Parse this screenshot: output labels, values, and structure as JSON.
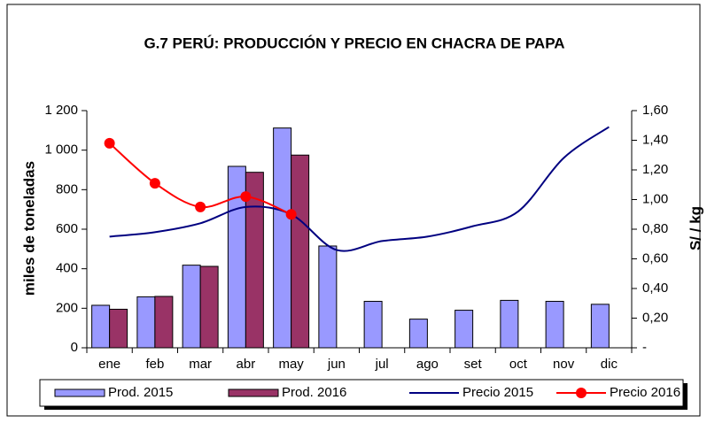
{
  "chart_data": {
    "type": "bar_line",
    "title": "G.7 PERÚ: PRODUCCIÓN Y PRECIO EN CHACRA DE PAPA",
    "ylabel": "miles de toneladas",
    "y2label": "S/ / kg",
    "categories": [
      "ene",
      "feb",
      "mar",
      "abr",
      "may",
      "jun",
      "jul",
      "ago",
      "set",
      "oct",
      "nov",
      "dic"
    ],
    "ylim": [
      0,
      1200
    ],
    "yticks": [
      0,
      200,
      400,
      600,
      800,
      {
        "value": 1000,
        "label": "1 000"
      },
      {
        "value": 1200,
        "label": "1 200"
      }
    ],
    "y2lim": [
      0,
      1.6
    ],
    "y2ticks": [
      {
        "value": 0,
        "label": "-"
      },
      {
        "value": 0.2,
        "label": "0,20"
      },
      {
        "value": 0.4,
        "label": "0,40"
      },
      {
        "value": 0.6,
        "label": "0,60"
      },
      {
        "value": 0.8,
        "label": "0,80"
      },
      {
        "value": 1.0,
        "label": "1,00"
      },
      {
        "value": 1.2,
        "label": "1,20"
      },
      {
        "value": 1.4,
        "label": "1,40"
      },
      {
        "value": 1.6,
        "label": "1,60"
      }
    ],
    "series": [
      {
        "name": "Prod. 2015",
        "kind": "bar",
        "color": "#9999ff",
        "values": [
          215,
          258,
          418,
          918,
          1112,
          515,
          235,
          145,
          190,
          240,
          235,
          220
        ]
      },
      {
        "name": "Prod. 2016",
        "kind": "bar",
        "color": "#993366",
        "values": [
          195,
          260,
          412,
          888,
          975,
          null,
          null,
          null,
          null,
          null,
          null,
          null
        ]
      },
      {
        "name": "Precio 2015",
        "kind": "line",
        "axis": "y2",
        "color": "#000080",
        "values": [
          0.75,
          0.78,
          0.84,
          0.95,
          0.9,
          0.66,
          0.72,
          0.75,
          0.82,
          0.92,
          1.28,
          1.49
        ]
      },
      {
        "name": "Precio 2016",
        "kind": "line",
        "axis": "y2",
        "markers": true,
        "color": "#ff0000",
        "values": [
          1.38,
          1.11,
          0.95,
          1.02,
          0.9,
          null,
          null,
          null,
          null,
          null,
          null,
          null
        ]
      }
    ]
  }
}
